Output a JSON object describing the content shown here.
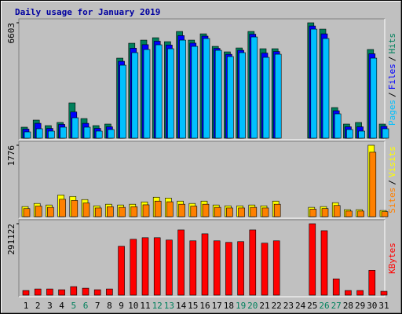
{
  "chart_data": {
    "type": "bar",
    "title": "Daily usage for January 2019",
    "title_color": "#0000a0",
    "legend_separator": "/",
    "categories": [
      "1",
      "2",
      "3",
      "4",
      "5",
      "6",
      "7",
      "8",
      "9",
      "10",
      "11",
      "12",
      "13",
      "14",
      "15",
      "16",
      "17",
      "18",
      "19",
      "20",
      "21",
      "22",
      "23",
      "24",
      "25",
      "26",
      "27",
      "28",
      "29",
      "30",
      "31"
    ],
    "category_label_colors": [
      "#000000",
      "#000000",
      "#000000",
      "#000000",
      "#00805c",
      "#00805c",
      "#000000",
      "#000000",
      "#000000",
      "#000000",
      "#000000",
      "#00805c",
      "#00805c",
      "#000000",
      "#000000",
      "#000000",
      "#000000",
      "#000000",
      "#00805c",
      "#00805c",
      "#000000",
      "#000000",
      "#000000",
      "#000000",
      "#000000",
      "#00805c",
      "#00805c",
      "#000000",
      "#000000",
      "#000000",
      "#000000"
    ],
    "panels": [
      {
        "ylim": [
          0,
          6603
        ],
        "yticks": [
          6603
        ],
        "series": [
          {
            "name": "Hits",
            "color": "#00805c",
            "values": [
              629,
              1033,
              718,
              898,
              2020,
              1122,
              718,
              808,
              4580,
              5433,
              5612,
              5747,
              5522,
              6106,
              5612,
              5971,
              5253,
              4939,
              5163,
              6106,
              5118,
              5118,
              0,
              0,
              6603,
              6241,
              1751,
              808,
              898,
              5073,
              808
            ]
          },
          {
            "name": "Files",
            "color": "#0000ff",
            "values": [
              520,
              850,
              560,
              790,
              1500,
              850,
              560,
              650,
              4400,
              5150,
              5350,
              5550,
              5330,
              5870,
              5440,
              5840,
              5140,
              4800,
              5030,
              5950,
              4870,
              4960,
              0,
              0,
              6420,
              5970,
              1570,
              650,
              650,
              4830,
              680
            ]
          },
          {
            "name": "Pages",
            "color": "#00c0ff",
            "values": [
              359,
              539,
              404,
              629,
              1167,
              629,
              404,
              494,
              4176,
              4894,
              5073,
              5343,
              5118,
              5612,
              5253,
              5702,
              5029,
              4670,
              4894,
              5792,
              4625,
              4804,
              0,
              0,
              6241,
              5702,
              1392,
              494,
              404,
              4580,
              539
            ]
          }
        ]
      },
      {
        "ylim": [
          0,
          1776
        ],
        "yticks": [
          1776
        ],
        "series": [
          {
            "name": "Visits",
            "color": "#ffff00",
            "values": [
              251,
              328,
              290,
              540,
              502,
              425,
              270,
              309,
              290,
              309,
              367,
              483,
              463,
              386,
              328,
              386,
              290,
              270,
              270,
              290,
              270,
              386,
              0,
              0,
              232,
              251,
              348,
              174,
              174,
              1776,
              154
            ]
          },
          {
            "name": "Sites",
            "color": "#ff8000",
            "values": [
              200,
              262,
              232,
              432,
              402,
              340,
              216,
              247,
              232,
              247,
              294,
              386,
              370,
              309,
              262,
              309,
              232,
              216,
              216,
              232,
              216,
              309,
              0,
              0,
              186,
              201,
              278,
              139,
              139,
              1602,
              123
            ]
          }
        ]
      },
      {
        "ylim": [
          0,
          291122
        ],
        "yticks": [
          291122
        ],
        "series": [
          {
            "name": "KBytes",
            "color": "#ff0000",
            "values": [
              18985,
              25311,
              25311,
              22149,
              34807,
              28475,
              22149,
              25311,
              199335,
              227813,
              234141,
              234141,
              224649,
              265781,
              221485,
              249961,
              221485,
              215157,
              218321,
              265781,
              211993,
              221485,
              0,
              0,
              291122,
              262617,
              66448,
              18985,
              18985,
              101252,
              15821
            ]
          }
        ]
      }
    ]
  }
}
